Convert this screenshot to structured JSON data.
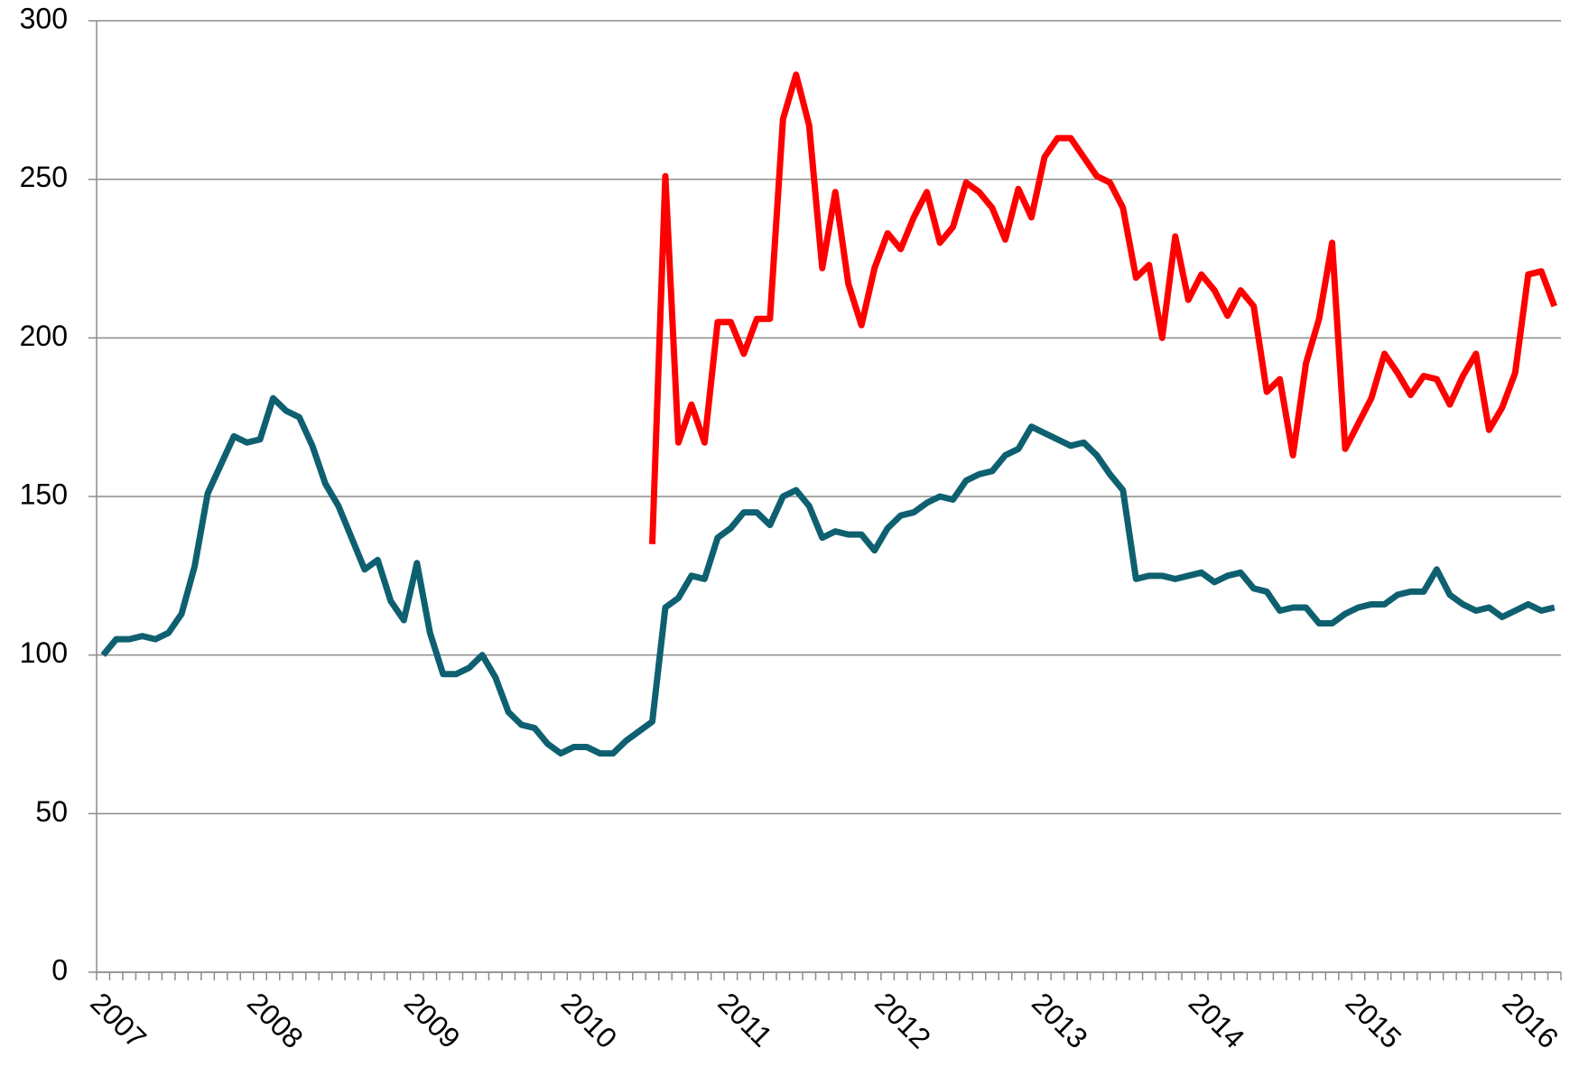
{
  "chart_data": {
    "type": "line",
    "categories": [
      "2007",
      null,
      null,
      null,
      null,
      null,
      null,
      null,
      null,
      null,
      null,
      null,
      "2008",
      null,
      null,
      null,
      null,
      null,
      null,
      null,
      null,
      null,
      null,
      null,
      "2009",
      null,
      null,
      null,
      null,
      null,
      null,
      null,
      null,
      null,
      null,
      null,
      "2010",
      null,
      null,
      null,
      null,
      null,
      null,
      null,
      null,
      null,
      null,
      null,
      "2011",
      null,
      null,
      null,
      null,
      null,
      null,
      null,
      null,
      null,
      null,
      null,
      "2012",
      null,
      null,
      null,
      null,
      null,
      null,
      null,
      null,
      null,
      null,
      null,
      "2013",
      null,
      null,
      null,
      null,
      null,
      null,
      null,
      null,
      null,
      null,
      null,
      "2014",
      null,
      null,
      null,
      null,
      null,
      null,
      null,
      null,
      null,
      null,
      null,
      "2015",
      null,
      null,
      null,
      null,
      null,
      null,
      null,
      null,
      null,
      null,
      null,
      "2016",
      null,
      null,
      null
    ],
    "series": [
      {
        "color": "#0e6070",
        "values": [
          100,
          105,
          105,
          106,
          105,
          107,
          113,
          128,
          151,
          160,
          169,
          167,
          168,
          181,
          177,
          175,
          166,
          154,
          147,
          137,
          127,
          130,
          117,
          111,
          129,
          107,
          94,
          94,
          96,
          100,
          93,
          82,
          78,
          77,
          72,
          69,
          71,
          71,
          69,
          69,
          73,
          76,
          79,
          115,
          118,
          125,
          124,
          137,
          140,
          145,
          145,
          141,
          150,
          152,
          147,
          137,
          139,
          138,
          138,
          133,
          140,
          144,
          145,
          148,
          150,
          149,
          155,
          157,
          158,
          163,
          165,
          172,
          170,
          168,
          166,
          167,
          163,
          157,
          152,
          124,
          125,
          125,
          124,
          125,
          126,
          123,
          125,
          126,
          121,
          120,
          114,
          115,
          115,
          110,
          110,
          113,
          115,
          116,
          116,
          119,
          120,
          120,
          127,
          119,
          116,
          114,
          115,
          112,
          114,
          116,
          114,
          115
        ]
      },
      {
        "color": "#ff0000",
        "values": [
          null,
          null,
          null,
          null,
          null,
          null,
          null,
          null,
          null,
          null,
          null,
          null,
          null,
          null,
          null,
          null,
          null,
          null,
          null,
          null,
          null,
          null,
          null,
          null,
          null,
          null,
          null,
          null,
          null,
          null,
          null,
          null,
          null,
          null,
          null,
          null,
          null,
          null,
          null,
          null,
          null,
          null,
          135,
          251,
          167,
          179,
          167,
          205,
          205,
          195,
          206,
          206,
          269,
          283,
          267,
          222,
          246,
          217,
          204,
          222,
          233,
          228,
          238,
          246,
          230,
          235,
          249,
          246,
          241,
          231,
          247,
          238,
          257,
          263,
          263,
          257,
          251,
          249,
          241,
          219,
          223,
          200,
          232,
          212,
          220,
          215,
          207,
          215,
          210,
          183,
          187,
          163,
          192,
          206,
          230,
          165,
          173,
          181,
          195,
          189,
          182,
          188,
          187,
          179,
          188,
          195,
          171,
          178,
          189,
          220,
          221,
          210
        ]
      }
    ],
    "ylim": [
      0,
      300
    ],
    "yticks": [
      0,
      50,
      100,
      150,
      200,
      250,
      300
    ],
    "grid": true
  }
}
